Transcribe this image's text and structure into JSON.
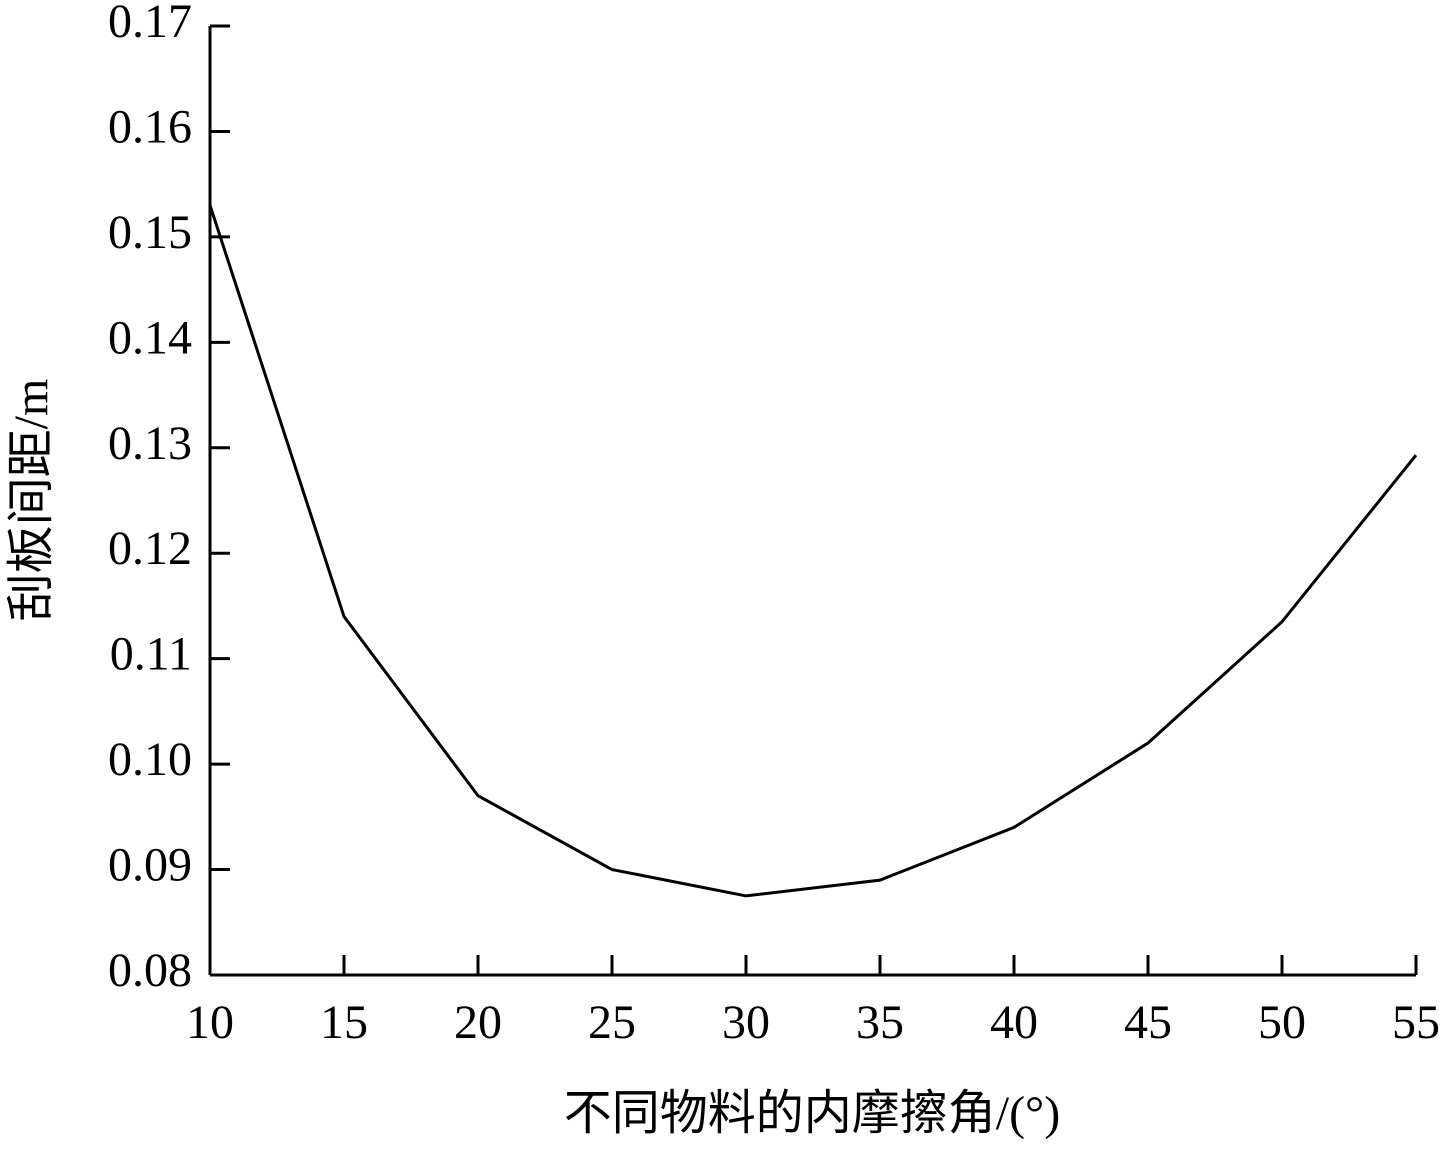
{
  "chart_data": {
    "type": "line",
    "x_label": "不同物料的内摩擦角/(°)",
    "y_label": "刮板间距/m",
    "x": [
      10,
      15,
      20,
      25,
      30,
      35,
      40,
      45,
      50,
      55
    ],
    "series": [
      {
        "name": "刮板间距",
        "color": "#000000",
        "values": [
          0.153,
          0.114,
          0.097,
          0.09,
          0.0875,
          0.089,
          0.094,
          0.102,
          0.1135,
          0.1293
        ]
      }
    ],
    "xlim": [
      10,
      55
    ],
    "xticks": [
      10,
      15,
      20,
      25,
      30,
      35,
      40,
      45,
      50,
      55
    ],
    "ylim": [
      0.08,
      0.17
    ],
    "yticks": [
      0.08,
      0.09,
      {
        "value": 0.1,
        "label": "0.10"
      },
      0.11,
      0.12,
      0.13,
      0.14,
      0.15,
      0.16,
      0.17
    ],
    "grid": false
  }
}
